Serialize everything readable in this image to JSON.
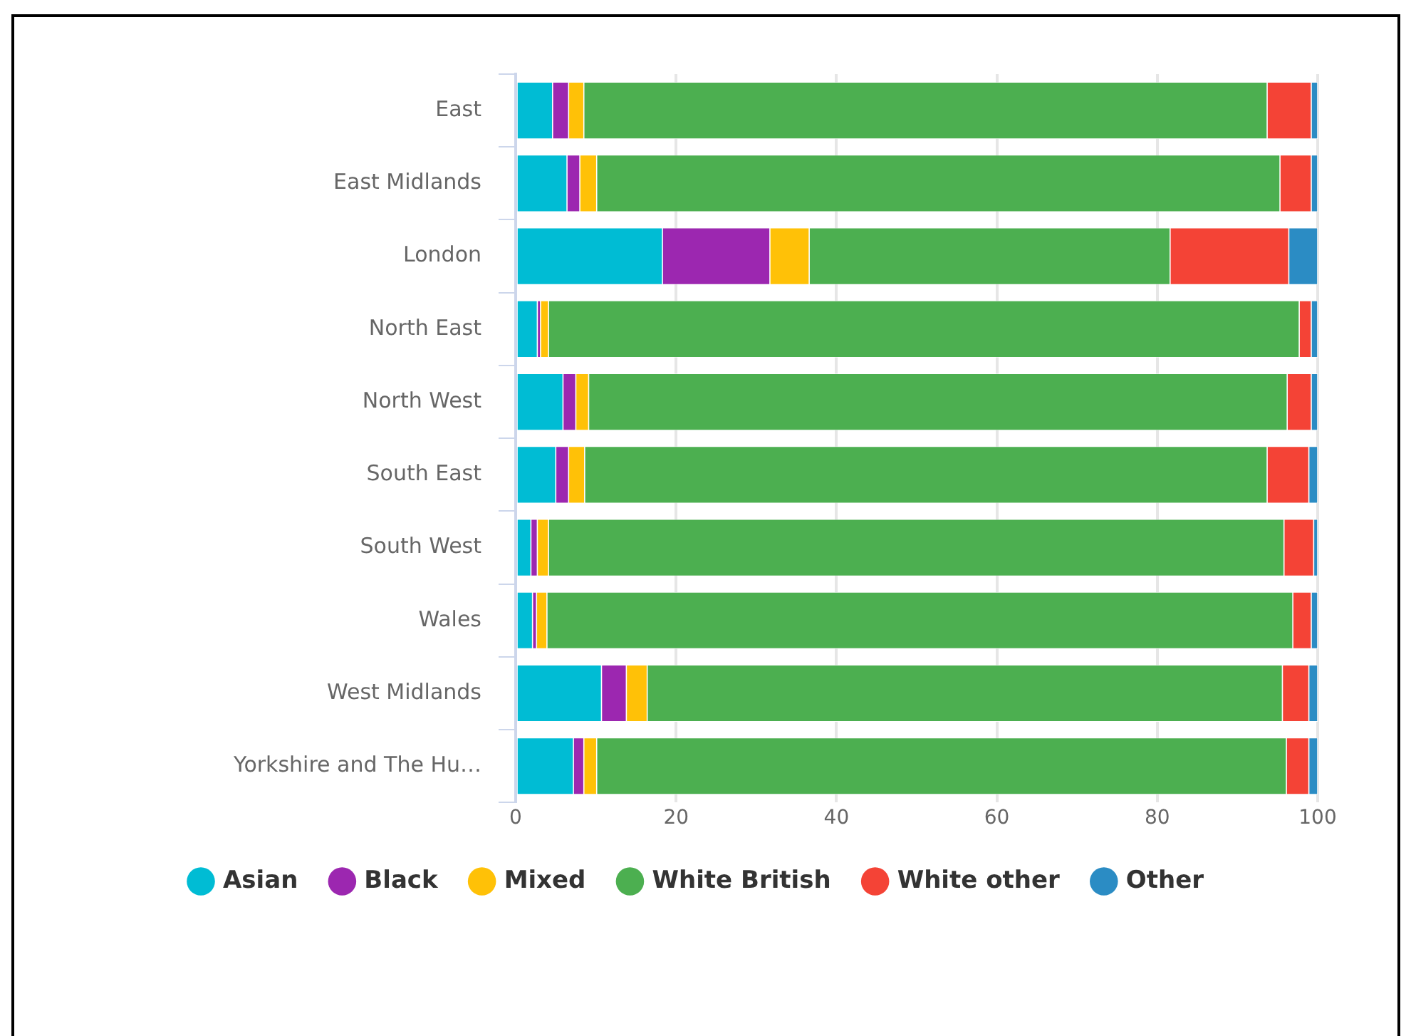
{
  "chart_data": {
    "type": "bar",
    "orientation": "horizontal",
    "stacked": true,
    "categories": [
      "East",
      "East Midlands",
      "London",
      "North East",
      "North West",
      "South East",
      "South West",
      "Wales",
      "West Midlands",
      "Yorkshire and The Hu…"
    ],
    "series": [
      {
        "name": "Asian",
        "color": "#00bcd4",
        "values": [
          4.6,
          6.4,
          18.3,
          2.7,
          5.9,
          5.0,
          1.9,
          2.1,
          10.7,
          7.2
        ]
      },
      {
        "name": "Black",
        "color": "#9c27b0",
        "values": [
          2.0,
          1.6,
          13.4,
          0.4,
          1.6,
          1.6,
          0.8,
          0.5,
          3.1,
          1.3
        ]
      },
      {
        "name": "Mixed",
        "color": "#ffc107",
        "values": [
          1.9,
          2.1,
          4.9,
          1.0,
          1.6,
          2.0,
          1.4,
          1.3,
          2.6,
          1.6
        ]
      },
      {
        "name": "White British",
        "color": "#4caf50",
        "values": [
          85.2,
          85.2,
          45.0,
          93.6,
          87.1,
          85.1,
          91.7,
          93.0,
          79.2,
          86.0
        ]
      },
      {
        "name": "White other",
        "color": "#f44336",
        "values": [
          5.5,
          3.9,
          14.8,
          1.5,
          3.0,
          5.2,
          3.7,
          2.3,
          3.3,
          2.8
        ]
      },
      {
        "name": "Other",
        "color": "#2b8cc4",
        "values": [
          0.8,
          0.8,
          3.6,
          0.8,
          0.8,
          1.1,
          0.5,
          0.8,
          1.1,
          1.1
        ]
      }
    ],
    "xlim": [
      0,
      100
    ],
    "xticks": [
      0,
      20,
      40,
      60,
      80,
      100
    ],
    "grid": "x",
    "legend": "bottom"
  }
}
